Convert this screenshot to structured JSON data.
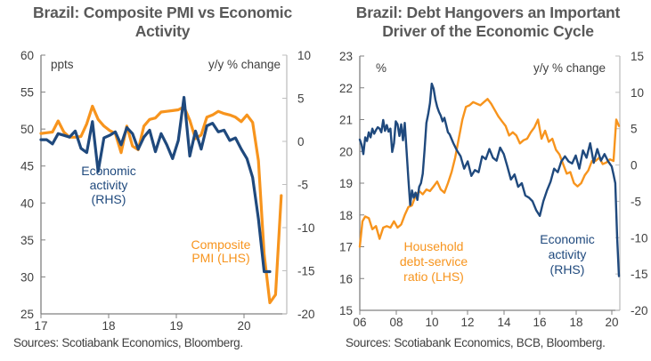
{
  "colors": {
    "pmi": "#F7941D",
    "activity": "#1F497D",
    "axis": "#808080",
    "text": "#404040",
    "title": "#595959"
  },
  "chart_data": [
    {
      "type": "line",
      "title": "Brazil: Composite PMI vs Economic Activity",
      "title_lines": [
        "Brazil: Composite  PMI vs Economic",
        "Activity"
      ],
      "source": "Sources: Scotiabank Economics, Bloomberg.",
      "ylabel_left": "ppts",
      "ylabel_right": "y/y % change",
      "ylim_left": [
        25,
        60
      ],
      "ylim_right": [
        -20,
        10
      ],
      "yticks_left": [
        "60",
        "55",
        "50",
        "45",
        "40",
        "35",
        "30",
        "25"
      ],
      "yticks_right": [
        "10",
        "5",
        "0",
        "-5",
        "-10",
        "-15",
        "-20"
      ],
      "xticks": [
        "17",
        "18",
        "19",
        "20"
      ],
      "xlim": [
        2017.0,
        2020.58
      ],
      "grid": false,
      "series": [
        {
          "name": "Composite PMI (LHS)",
          "axis": "left",
          "annotation": [
            "Composite",
            "PMI (LHS)"
          ],
          "x": [
            2017.0,
            2017.083,
            2017.167,
            2017.25,
            2017.333,
            2017.417,
            2017.5,
            2017.583,
            2017.667,
            2017.75,
            2017.833,
            2017.917,
            2018.0,
            2018.083,
            2018.167,
            2018.25,
            2018.333,
            2018.417,
            2018.5,
            2018.583,
            2018.667,
            2018.75,
            2018.833,
            2018.917,
            2019.0,
            2019.083,
            2019.167,
            2019.25,
            2019.333,
            2019.417,
            2019.5,
            2019.583,
            2019.667,
            2019.75,
            2019.833,
            2019.917,
            2020.0,
            2020.083,
            2020.167,
            2020.25,
            2020.333,
            2020.417,
            2020.5
          ],
          "values": [
            49.4,
            49.5,
            49.6,
            51.1,
            49.6,
            48.9,
            48.9,
            49.0,
            50.7,
            53.1,
            51.3,
            50.4,
            49.8,
            49.4,
            46.8,
            50.4,
            47.7,
            47.2,
            50.4,
            51.3,
            51.5,
            52.3,
            52.4,
            52.5,
            52.6,
            53.0,
            51.2,
            48.7,
            49.2,
            51.6,
            51.9,
            52.4,
            52.1,
            51.9,
            51.6,
            51.0,
            51.9,
            50.9,
            45.7,
            33.1,
            26.5,
            27.6,
            41.0
          ]
        },
        {
          "name": "Economic activity (RHS)",
          "axis": "right",
          "annotation": [
            "Economic",
            "activity",
            "(RHS)"
          ],
          "x": [
            2017.0,
            2017.083,
            2017.167,
            2017.25,
            2017.333,
            2017.417,
            2017.5,
            2017.583,
            2017.667,
            2017.75,
            2017.833,
            2017.917,
            2018.0,
            2018.083,
            2018.167,
            2018.25,
            2018.333,
            2018.417,
            2018.5,
            2018.583,
            2018.667,
            2018.75,
            2018.833,
            2018.917,
            2019.0,
            2019.083,
            2019.167,
            2019.25,
            2019.333,
            2019.417,
            2019.5,
            2019.583,
            2019.667,
            2019.75,
            2019.833,
            2019.917,
            2020.0,
            2020.083,
            2020.167,
            2020.25,
            2020.333
          ],
          "values": [
            0.2,
            0.2,
            -0.3,
            0.9,
            0.7,
            0.5,
            1.2,
            -0.8,
            -1.3,
            2.3,
            -3.5,
            0.4,
            0.7,
            1.1,
            -0.4,
            1.6,
            0.9,
            -0.9,
            0.5,
            1.3,
            -1.2,
            0.9,
            -0.4,
            -2.0,
            0.1,
            5.1,
            -1.7,
            1.2,
            -0.9,
            1.8,
            2.1,
            1.1,
            1.3,
            0.1,
            0.4,
            -0.9,
            -2.0,
            -4.2,
            -9.0,
            -15.1,
            -15.1
          ]
        }
      ]
    },
    {
      "type": "line",
      "title": "Brazil: Debt Hangovers an Important Driver of the Economic Cycle",
      "title_lines": [
        "Brazil: Debt Hangovers an Important",
        "Driver of the Economic Cycle"
      ],
      "source": "Sources: Scotiabank Economics, BCB, Bloomberg.",
      "ylabel_left": "%",
      "ylabel_right": "y/y % change",
      "ylim_left": [
        15,
        23
      ],
      "ylim_right": [
        -20,
        15
      ],
      "yticks_left": [
        "23",
        "22",
        "21",
        "20",
        "19",
        "18",
        "17",
        "16",
        "15"
      ],
      "yticks_right": [
        "15",
        "10",
        "5",
        "0",
        "-5",
        "-10",
        "-15",
        "-20"
      ],
      "xticks": [
        "06",
        "08",
        "10",
        "12",
        "14",
        "16",
        "18",
        "20"
      ],
      "xlim": [
        2006.0,
        2020.45
      ],
      "grid": false,
      "series": [
        {
          "name": "Household debt-service ratio (LHS)",
          "axis": "left",
          "annotation": [
            "Household",
            "debt-service",
            "ratio (LHS)"
          ],
          "x": [
            2006.0,
            2006.15,
            2006.3,
            2006.5,
            2006.7,
            2006.9,
            2007.1,
            2007.3,
            2007.5,
            2007.7,
            2007.9,
            2008.1,
            2008.3,
            2008.5,
            2008.7,
            2008.9,
            2009.1,
            2009.3,
            2009.5,
            2009.7,
            2009.9,
            2010.1,
            2010.3,
            2010.5,
            2010.7,
            2010.9,
            2011.1,
            2011.3,
            2011.5,
            2011.7,
            2011.9,
            2012.1,
            2012.3,
            2012.5,
            2012.7,
            2012.9,
            2013.1,
            2013.3,
            2013.5,
            2013.7,
            2013.9,
            2014.1,
            2014.3,
            2014.5,
            2014.7,
            2014.9,
            2015.1,
            2015.3,
            2015.5,
            2015.7,
            2015.9,
            2016.1,
            2016.3,
            2016.5,
            2016.7,
            2016.9,
            2017.1,
            2017.3,
            2017.5,
            2017.7,
            2017.9,
            2018.1,
            2018.3,
            2018.5,
            2018.7,
            2018.9,
            2019.1,
            2019.3,
            2019.5,
            2019.7,
            2019.9,
            2020.1,
            2020.25,
            2020.4
          ],
          "values": [
            17.0,
            17.8,
            17.95,
            17.9,
            17.55,
            17.65,
            17.25,
            17.6,
            17.65,
            17.6,
            17.8,
            17.6,
            17.7,
            18.0,
            18.25,
            18.3,
            18.6,
            18.75,
            18.65,
            18.8,
            18.75,
            18.9,
            19.05,
            18.8,
            18.7,
            19.0,
            19.35,
            19.8,
            20.4,
            21.0,
            21.4,
            21.45,
            21.55,
            21.5,
            21.45,
            21.55,
            21.65,
            21.5,
            21.3,
            21.1,
            20.95,
            20.8,
            20.5,
            20.6,
            20.5,
            20.25,
            20.35,
            20.4,
            20.6,
            20.75,
            21.0,
            20.4,
            20.65,
            20.3,
            20.4,
            20.05,
            19.9,
            19.6,
            19.3,
            19.35,
            19.0,
            18.9,
            19.0,
            19.25,
            19.4,
            19.7,
            19.7,
            19.8,
            19.6,
            19.65,
            19.75,
            19.7,
            21.0,
            20.8
          ]
        },
        {
          "name": "Economic activity (RHS)",
          "axis": "right",
          "annotation": [
            "Economic",
            "activity",
            "(RHS)"
          ],
          "x": [
            2006.0,
            2006.1,
            2006.2,
            2006.3,
            2006.4,
            2006.5,
            2006.6,
            2006.7,
            2006.8,
            2006.9,
            2007.0,
            2007.1,
            2007.2,
            2007.3,
            2007.4,
            2007.5,
            2007.6,
            2007.7,
            2007.8,
            2007.9,
            2008.0,
            2008.1,
            2008.2,
            2008.3,
            2008.4,
            2008.5,
            2008.6,
            2008.7,
            2008.8,
            2008.9,
            2009.0,
            2009.1,
            2009.2,
            2009.3,
            2009.4,
            2009.5,
            2009.6,
            2009.7,
            2009.8,
            2009.9,
            2010.0,
            2010.1,
            2010.2,
            2010.3,
            2010.4,
            2010.5,
            2010.6,
            2010.7,
            2010.8,
            2010.9,
            2011.0,
            2011.2,
            2011.4,
            2011.6,
            2011.8,
            2012.0,
            2012.2,
            2012.4,
            2012.6,
            2012.8,
            2013.0,
            2013.2,
            2013.4,
            2013.6,
            2013.8,
            2014.0,
            2014.2,
            2014.4,
            2014.6,
            2014.8,
            2015.0,
            2015.2,
            2015.4,
            2015.6,
            2015.8,
            2016.0,
            2016.2,
            2016.4,
            2016.6,
            2016.8,
            2017.0,
            2017.2,
            2017.4,
            2017.6,
            2017.8,
            2018.0,
            2018.2,
            2018.4,
            2018.6,
            2018.8,
            2019.0,
            2019.2,
            2019.4,
            2019.6,
            2019.8,
            2020.0,
            2020.1,
            2020.2,
            2020.3,
            2020.4
          ],
          "values": [
            3.5,
            2.8,
            1.5,
            3.8,
            3.3,
            4.5,
            3.8,
            5.0,
            4.3,
            4.8,
            5.2,
            5.0,
            4.5,
            6.2,
            4.7,
            5.5,
            4.6,
            5.0,
            1.8,
            3.0,
            6.0,
            5.6,
            4.0,
            5.6,
            3.4,
            5.8,
            2.0,
            -2.0,
            -5.5,
            -3.5,
            -4.5,
            -3.8,
            -4.8,
            -3.0,
            -2.5,
            -1.2,
            2.0,
            5.8,
            7.0,
            8.5,
            11.2,
            10.5,
            9.0,
            8.0,
            7.3,
            6.8,
            6.0,
            6.5,
            5.5,
            4.5,
            4.2,
            3.0,
            2.0,
            1.2,
            -0.5,
            0.5,
            -1.5,
            -0.7,
            -1.0,
            1.2,
            0.8,
            2.2,
            1.0,
            0.6,
            2.4,
            1.5,
            -0.2,
            -2.0,
            -1.3,
            -3.0,
            -2.5,
            -4.2,
            -4.5,
            -5.0,
            -6.2,
            -7.0,
            -5.0,
            -3.5,
            -2.3,
            -0.5,
            -1.0,
            0.5,
            1.2,
            0.5,
            0.2,
            1.3,
            -0.5,
            2.0,
            1.0,
            3.0,
            0.3,
            2.2,
            0.6,
            1.5,
            0.5,
            -0.2,
            -1.3,
            -2.5,
            -10.0,
            -15.3
          ]
        }
      ]
    }
  ]
}
